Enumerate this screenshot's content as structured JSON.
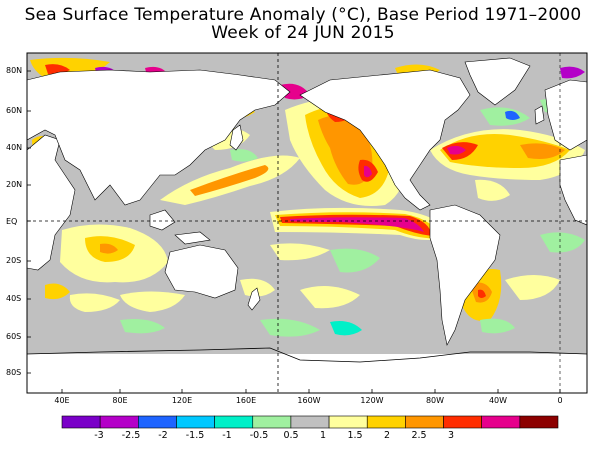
{
  "title": {
    "line1": "Sea Surface Temperature Anomaly (°C), Base Period 1971–2000",
    "line2": "Week of 24 JUN 2015"
  },
  "map": {
    "lat_labels": [
      "80N",
      "60N",
      "40N",
      "20N",
      "EQ",
      "20S",
      "40S",
      "60S",
      "80S"
    ],
    "lon_labels": [
      "40E",
      "80E",
      "120E",
      "160E",
      "160W",
      "120W",
      "80W",
      "40W",
      "0"
    ],
    "reference_lines": [
      "EQ",
      "180"
    ]
  },
  "colorbar": {
    "labels": [
      "-3",
      "-2.5",
      "-2",
      "-1.5",
      "-1",
      "-0.5",
      "0.5",
      "1",
      "1.5",
      "2",
      "2.5",
      "3"
    ],
    "colors": [
      "#7a00c8",
      "#b400c8",
      "#1e64ff",
      "#00c8ff",
      "#00f0c8",
      "#a0f0a0",
      "#c0c0c0",
      "#ffff9e",
      "#ffd200",
      "#ff9600",
      "#ff2d00",
      "#e6008c",
      "#8c0000"
    ]
  },
  "colors": {
    "land": "#ffffff",
    "neutral_ocean": "#c0c0c0",
    "frame": "#000000"
  }
}
